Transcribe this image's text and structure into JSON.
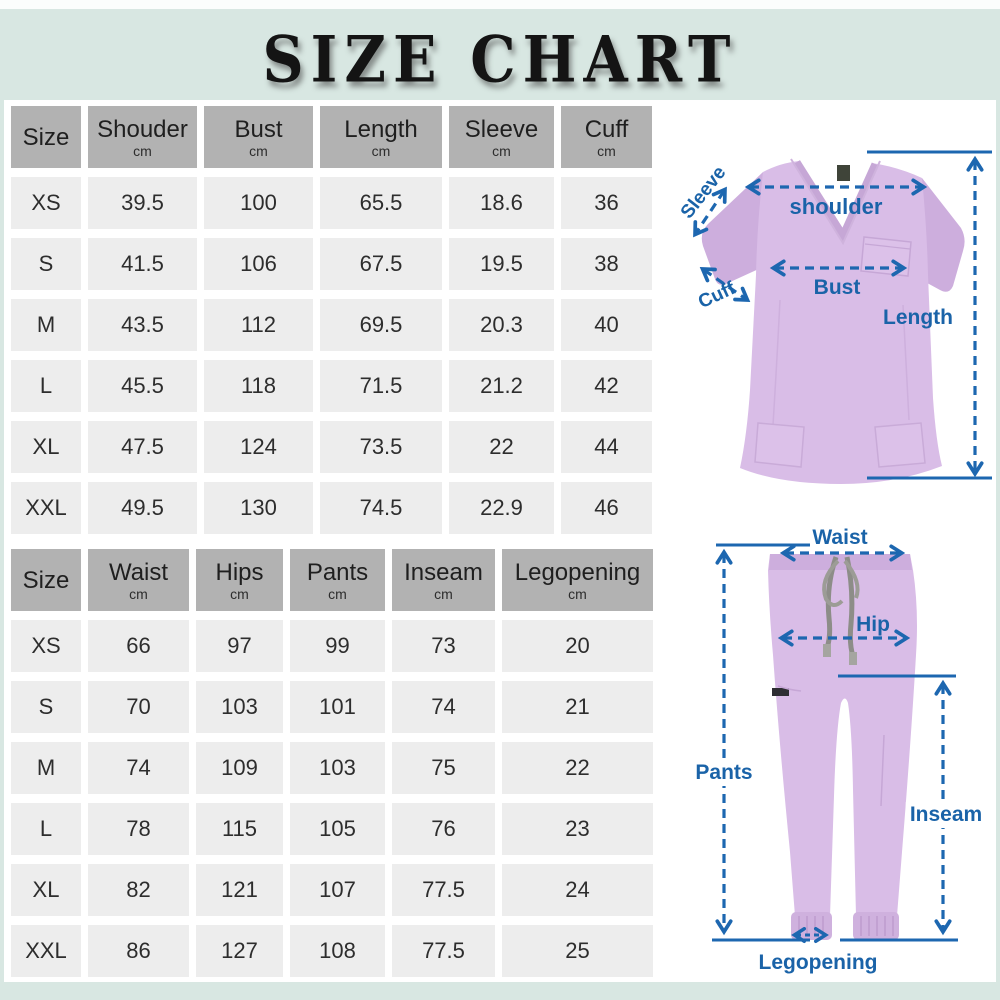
{
  "page": {
    "title": "SIZE CHART"
  },
  "colors": {
    "background_mint": "#d8e7e2",
    "panel_white": "#ffffff",
    "header_cell_gray": "#b2b2b2",
    "row_cell_gray": "#ededed",
    "annotation_blue": "#1d67b0",
    "garment_lavender": "#d9bde7",
    "title_black": "#141414"
  },
  "top_table": {
    "columns": [
      {
        "label": "Size",
        "unit": ""
      },
      {
        "label": "Shouder",
        "unit": "cm"
      },
      {
        "label": "Bust",
        "unit": "cm"
      },
      {
        "label": "Length",
        "unit": "cm"
      },
      {
        "label": "Sleeve",
        "unit": "cm"
      },
      {
        "label": "Cuff",
        "unit": "cm"
      }
    ],
    "rows": [
      {
        "size": "XS",
        "values": [
          "39.5",
          "100",
          "65.5",
          "18.6",
          "36"
        ]
      },
      {
        "size": "S",
        "values": [
          "41.5",
          "106",
          "67.5",
          "19.5",
          "38"
        ]
      },
      {
        "size": "M",
        "values": [
          "43.5",
          "112",
          "69.5",
          "20.3",
          "40"
        ]
      },
      {
        "size": "L",
        "values": [
          "45.5",
          "118",
          "71.5",
          "21.2",
          "42"
        ]
      },
      {
        "size": "XL",
        "values": [
          "47.5",
          "124",
          "73.5",
          "22",
          "44"
        ]
      },
      {
        "size": "XXL",
        "values": [
          "49.5",
          "130",
          "74.5",
          "22.9",
          "46"
        ]
      }
    ]
  },
  "bottom_table": {
    "columns": [
      {
        "label": "Size",
        "unit": ""
      },
      {
        "label": "Waist",
        "unit": "cm"
      },
      {
        "label": "Hips",
        "unit": "cm"
      },
      {
        "label": "Pants",
        "unit": "cm"
      },
      {
        "label": "Inseam",
        "unit": "cm"
      },
      {
        "label": "Legopening",
        "unit": "cm"
      }
    ],
    "rows": [
      {
        "size": "XS",
        "values": [
          "66",
          "97",
          "99",
          "73",
          "20"
        ]
      },
      {
        "size": "S",
        "values": [
          "70",
          "103",
          "101",
          "74",
          "21"
        ]
      },
      {
        "size": "M",
        "values": [
          "74",
          "109",
          "103",
          "75",
          "22"
        ]
      },
      {
        "size": "L",
        "values": [
          "78",
          "115",
          "105",
          "76",
          "23"
        ]
      },
      {
        "size": "XL",
        "values": [
          "82",
          "121",
          "107",
          "77.5",
          "24"
        ]
      },
      {
        "size": "XXL",
        "values": [
          "86",
          "127",
          "108",
          "77.5",
          "25"
        ]
      }
    ]
  },
  "top_diagram": {
    "labels": {
      "sleeve": "Sleeve",
      "shoulder": "shoulder",
      "bust": "Bust",
      "cuff": "Cuff",
      "length": "Length"
    }
  },
  "bottom_diagram": {
    "labels": {
      "waist": "Waist",
      "hip": "Hip",
      "pants": "Pants",
      "inseam": "Inseam",
      "legopening": "Legopening"
    }
  }
}
